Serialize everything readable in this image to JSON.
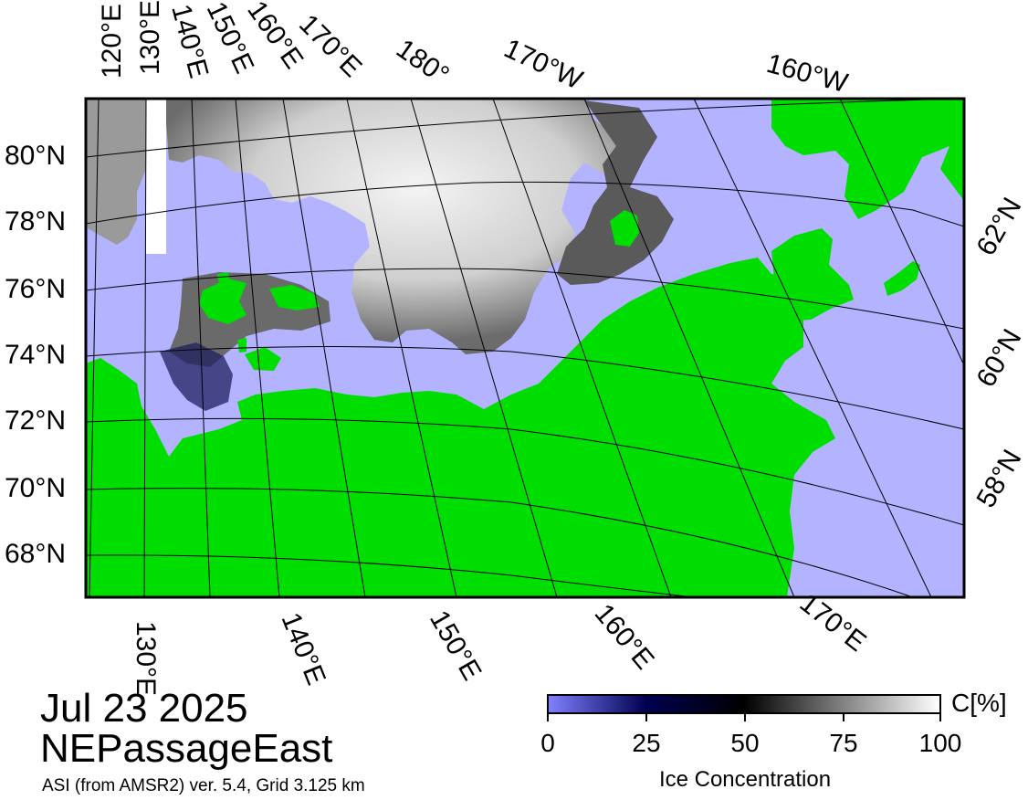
{
  "map": {
    "title_date": "Jul 23 2025",
    "title_region": "NEPassageEast",
    "source_note": "ASI (from AMSR2) ver. 5.4,  Grid 3.125 km",
    "colors": {
      "ocean": "#b3b3ff",
      "land": "#00dd00",
      "ice_high": "#f2f2f2",
      "ice_mid": "#7a7a7a",
      "ice_low": "#101040"
    },
    "top_lon_labels": [
      "120°E",
      "130°E",
      "140°E",
      "150°E",
      "160°E",
      "170°E",
      "180°",
      "170°W",
      "160°W"
    ],
    "left_lat_labels": [
      "80°N",
      "78°N",
      "76°N",
      "74°N",
      "72°N",
      "70°N",
      "68°N"
    ],
    "right_lat_labels": [
      "62°N",
      "60°N",
      "58°N"
    ],
    "bottom_lon_labels": [
      "130°E",
      "140°E",
      "150°E",
      "160°E",
      "170°E"
    ]
  },
  "colorbar": {
    "label": "Ice Concentration",
    "unit": "C[%]",
    "ticks": [
      "0",
      "25",
      "50",
      "75",
      "100"
    ],
    "stops": [
      "#8080ff",
      "#000050",
      "#000000",
      "#808080",
      "#ffffff"
    ]
  }
}
